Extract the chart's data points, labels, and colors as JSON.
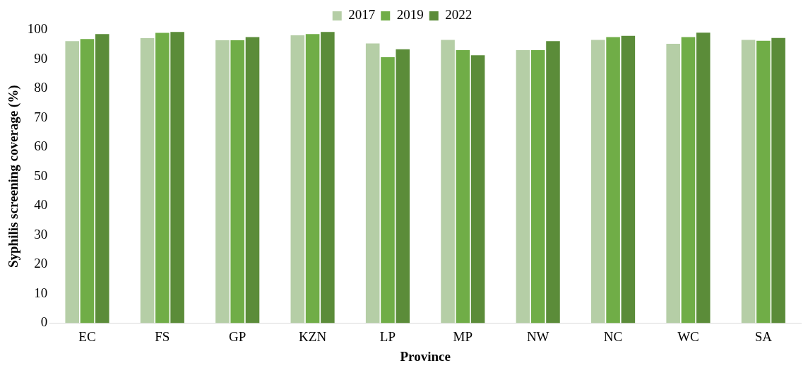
{
  "chart_data": {
    "type": "bar",
    "xlabel": "Province",
    "ylabel": "Syphilis screening coverage (%)",
    "categories": [
      "EC",
      "FS",
      "GP",
      "KZN",
      "LP",
      "MP",
      "NW",
      "NC",
      "WC",
      "SA"
    ],
    "series": [
      {
        "name": "2017",
        "color": "#b5cea6",
        "values": [
          96.1,
          97.1,
          96.4,
          98.1,
          95.3,
          96.5,
          93.0,
          96.5,
          95.2,
          96.5
        ]
      },
      {
        "name": "2019",
        "color": "#70ad47",
        "values": [
          96.8,
          98.9,
          96.4,
          98.5,
          90.6,
          93.0,
          93.0,
          97.5,
          97.5,
          96.2
        ]
      },
      {
        "name": "2022",
        "color": "#5b8c39",
        "values": [
          98.5,
          99.2,
          97.5,
          99.2,
          93.3,
          91.3,
          96.1,
          97.9,
          99.0,
          97.2
        ]
      }
    ],
    "ylim": [
      0,
      100
    ],
    "yticks": [
      0,
      10,
      20,
      30,
      40,
      50,
      60,
      70,
      80,
      90,
      100
    ],
    "grid": false,
    "legend": "top"
  }
}
